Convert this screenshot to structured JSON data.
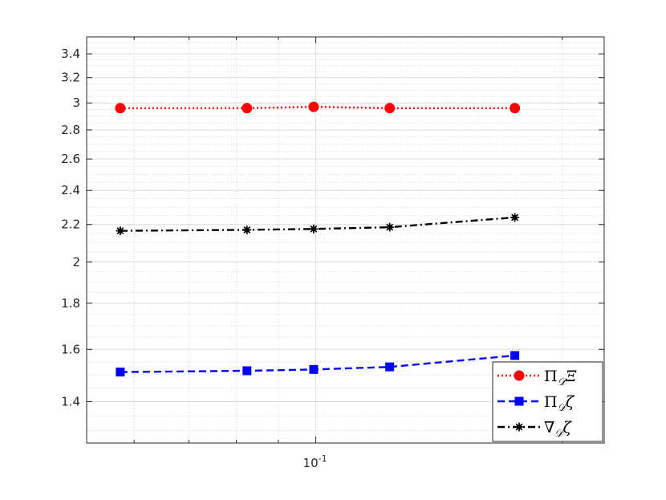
{
  "chart_data": {
    "type": "line",
    "x_scale": "log",
    "y_scale": "log",
    "xlim": [
      0.0525,
      0.225
    ],
    "ylim": [
      1.26,
      3.55
    ],
    "grid": "major-and-minor",
    "legend_position": "bottom-right",
    "x_tick_labels": [
      {
        "value": 0.1,
        "base": "10",
        "exp": "-1"
      }
    ],
    "y_ticks": [
      1.4,
      1.6,
      1.8,
      2,
      2.2,
      2.4,
      2.6,
      2.8,
      3,
      3.2,
      3.4
    ],
    "y_tick_labels": [
      "1.4",
      "1.6",
      "1.8",
      "2",
      "2.2",
      "2.4",
      "2.6",
      "2.8",
      "3",
      "3.2",
      "3.4"
    ],
    "x": [
      0.0577,
      0.0824,
      0.0994,
      0.1231,
      0.175
    ],
    "series": [
      {
        "name": "ΠDΞ",
        "values": [
          2.96,
          2.96,
          2.97,
          2.96,
          2.96
        ],
        "color": "#ff0000",
        "line_style": "dotted",
        "marker": "circle"
      },
      {
        "name": "ΠDζ",
        "values": [
          1.51,
          1.515,
          1.52,
          1.53,
          1.575
        ],
        "color": "#0000ff",
        "line_style": "dashed",
        "marker": "square"
      },
      {
        "name": "∇Dζ",
        "values": [
          2.165,
          2.17,
          2.175,
          2.185,
          2.24
        ],
        "color": "#000000",
        "line_style": "dash-dot",
        "marker": "asterisk"
      }
    ],
    "legend": [
      {
        "sym": "Π",
        "sub": "𝒟",
        "tail": "Ξ"
      },
      {
        "sym": "Π",
        "sub": "𝒟",
        "tail": "ζ"
      },
      {
        "sym": "∇",
        "sub": "𝒟",
        "tail": "ζ"
      }
    ]
  }
}
